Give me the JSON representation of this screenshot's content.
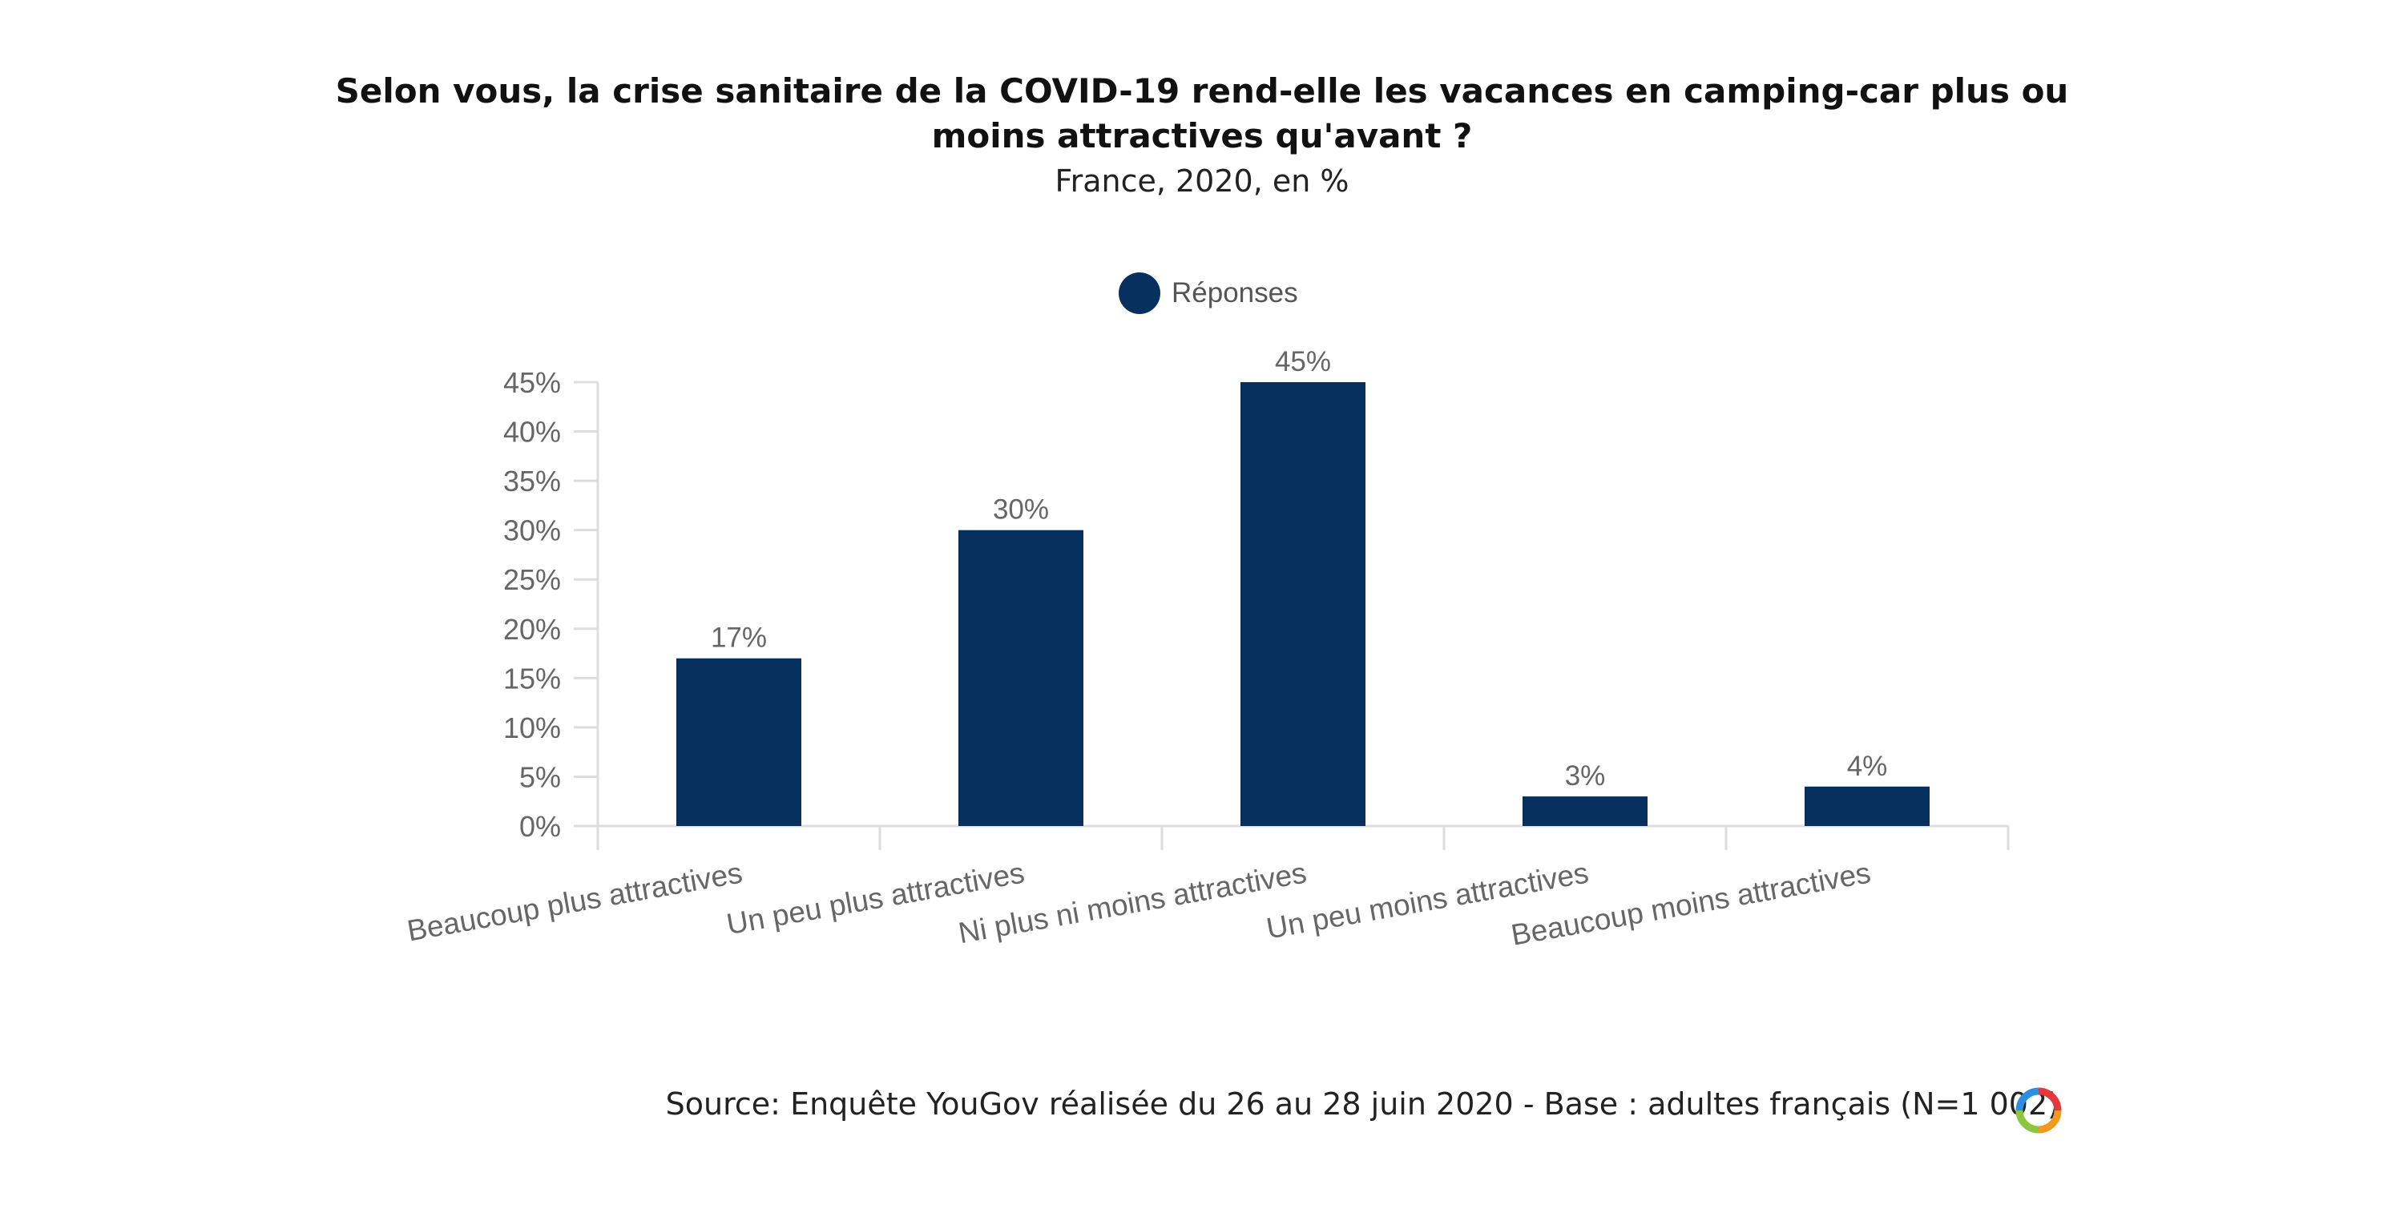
{
  "title_line1": "Selon vous, la crise sanitaire de la COVID-19 rend-elle les vacances en camping-car plus ou",
  "title_line2": "moins attractives qu'avant ?",
  "subtitle": "France, 2020, en %",
  "source": "Source: Enquête YouGov réalisée du 26 au 28 juin 2020 - Base : adultes français (N=1 002)",
  "logo_icon": "yougov-ring-logo-icon",
  "colors": {
    "bar": "#08305e",
    "axis_text": "#666666",
    "grid": "#dddddd"
  },
  "chart_data": {
    "type": "bar",
    "title": "",
    "xlabel": "",
    "ylabel": "",
    "categories": [
      "Beaucoup plus attractives",
      "Un peu plus attractives",
      "Ni plus ni moins attractives",
      "Un peu moins attractives",
      "Beaucoup moins attractives"
    ],
    "series": [
      {
        "name": "Réponses",
        "values": [
          17,
          30,
          45,
          3,
          4
        ],
        "color": "#08305e"
      }
    ],
    "data_labels": [
      "17%",
      "30%",
      "45%",
      "3%",
      "4%"
    ],
    "yticks": [
      "0%",
      "5%",
      "10%",
      "15%",
      "20%",
      "25%",
      "30%",
      "35%",
      "40%",
      "45%"
    ],
    "ylim": [
      0,
      45
    ],
    "legend_position": "top-center",
    "grid": false
  }
}
